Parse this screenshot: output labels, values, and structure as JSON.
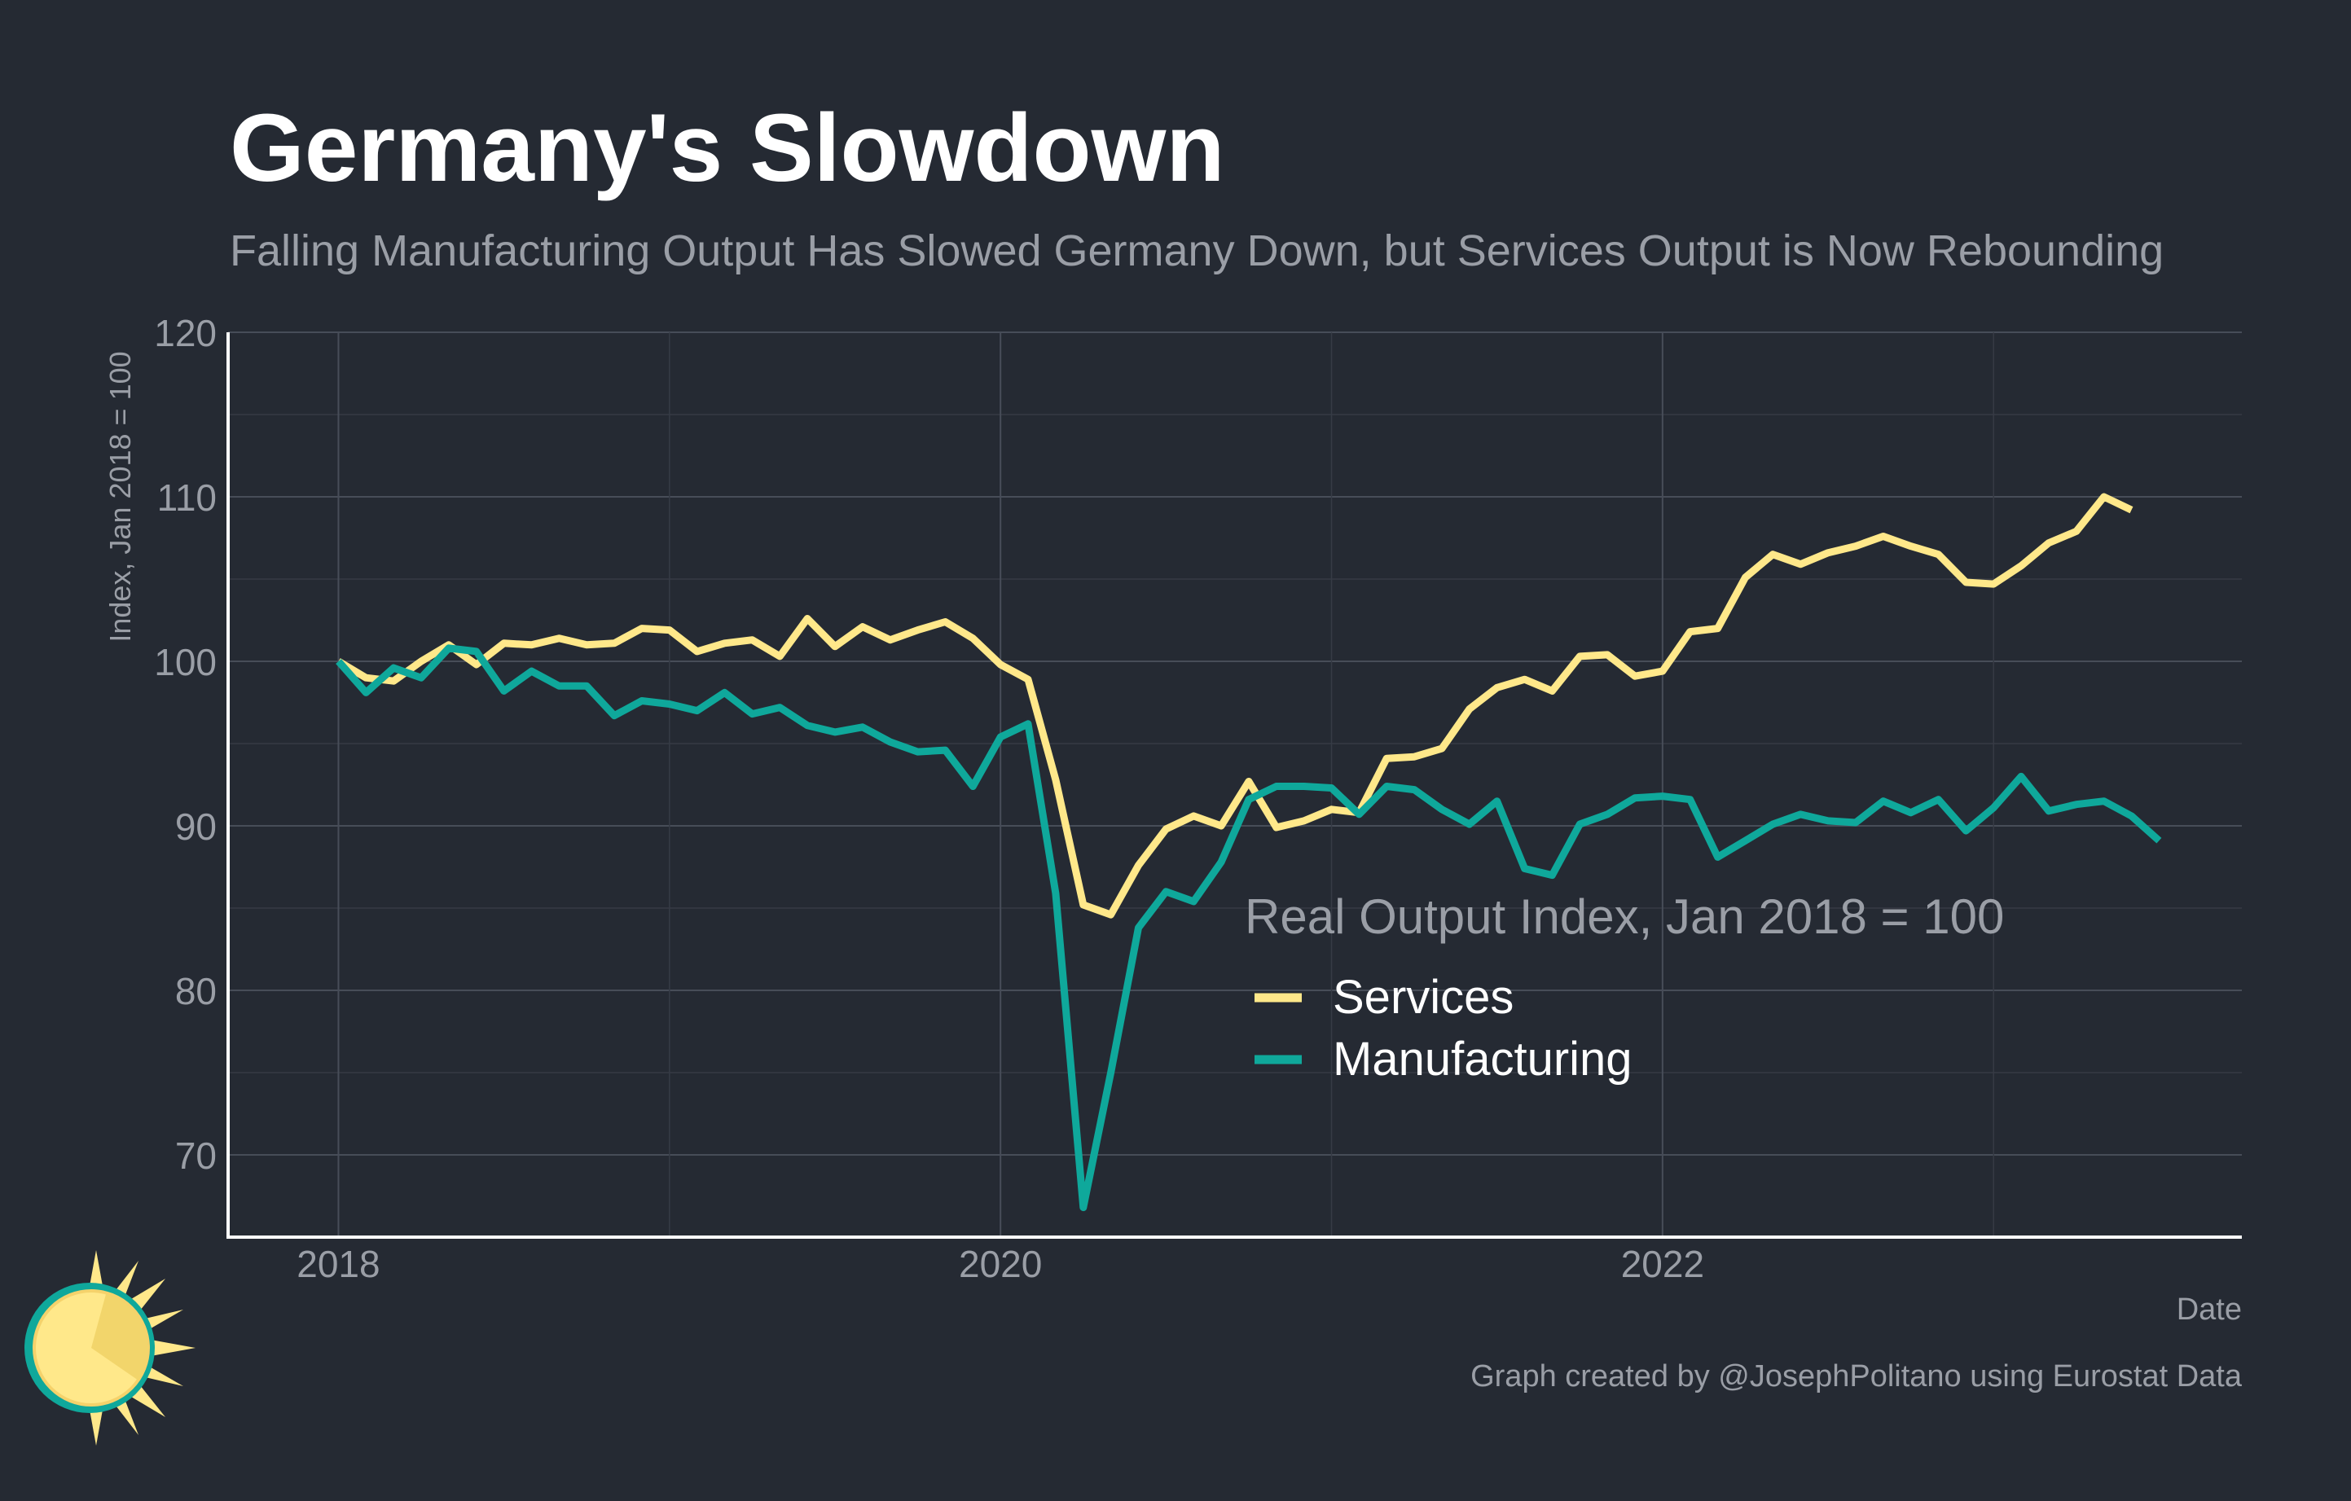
{
  "chart_data": {
    "type": "line",
    "title": "Germany's Slowdown",
    "subtitle": "Falling Manufacturing Output Has Slowed Germany Down, but Services Output is Now Rebounding",
    "xlabel": "Date",
    "ylabel": "Index, Jan 2018 = 100",
    "xlim": [
      "2017-09",
      "2023-10"
    ],
    "ylim": [
      65,
      120
    ],
    "yticks": [
      70,
      80,
      90,
      100,
      110,
      120
    ],
    "xticks": [
      "2018",
      "2020",
      "2022"
    ],
    "grid": true,
    "legend": {
      "title": "Real Output Index, Jan 2018 = 100",
      "placement": "center-right"
    },
    "caption": "Graph created by @JosephPolitano using Eurostat Data",
    "series": [
      {
        "name": "Services",
        "color": "#ffe88a",
        "start": "2018-01",
        "values": [
          100.0,
          99.0,
          98.8,
          100.0,
          101.0,
          99.8,
          101.1,
          101.0,
          101.4,
          101.0,
          101.1,
          102.0,
          101.9,
          100.6,
          101.1,
          101.3,
          100.3,
          102.6,
          100.9,
          102.1,
          101.3,
          101.9,
          102.4,
          101.4,
          99.8,
          98.9,
          92.8,
          85.2,
          84.6,
          87.6,
          89.8,
          90.6,
          90.0,
          92.7,
          89.9,
          90.3,
          91.0,
          90.8,
          94.1,
          94.2,
          94.7,
          97.1,
          98.4,
          98.9,
          98.2,
          100.3,
          100.4,
          99.1,
          99.4,
          101.8,
          102.0,
          105.1,
          106.5,
          105.9,
          106.6,
          107.0,
          107.6,
          107.0,
          106.5,
          104.8,
          104.7,
          105.8,
          107.2,
          107.9,
          110.0,
          109.2
        ]
      },
      {
        "name": "Manufacturing",
        "color": "#0fa89b",
        "start": "2018-01",
        "values": [
          100.0,
          98.1,
          99.6,
          99.0,
          100.8,
          100.6,
          98.2,
          99.4,
          98.5,
          98.5,
          96.7,
          97.6,
          97.4,
          97.0,
          98.1,
          96.8,
          97.2,
          96.1,
          95.7,
          96.0,
          95.1,
          94.5,
          94.6,
          92.4,
          95.4,
          96.2,
          85.9,
          66.8,
          75.0,
          83.8,
          86.0,
          85.4,
          87.8,
          91.6,
          92.4,
          92.4,
          92.3,
          90.7,
          92.4,
          92.2,
          91.0,
          90.1,
          91.5,
          87.4,
          87.0,
          90.1,
          90.7,
          91.7,
          91.8,
          91.6,
          88.1,
          89.1,
          90.1,
          90.7,
          90.3,
          90.2,
          91.5,
          90.8,
          91.6,
          89.7,
          91.1,
          93.0,
          90.9,
          91.3,
          91.5,
          90.6,
          89.1
        ]
      }
    ]
  }
}
